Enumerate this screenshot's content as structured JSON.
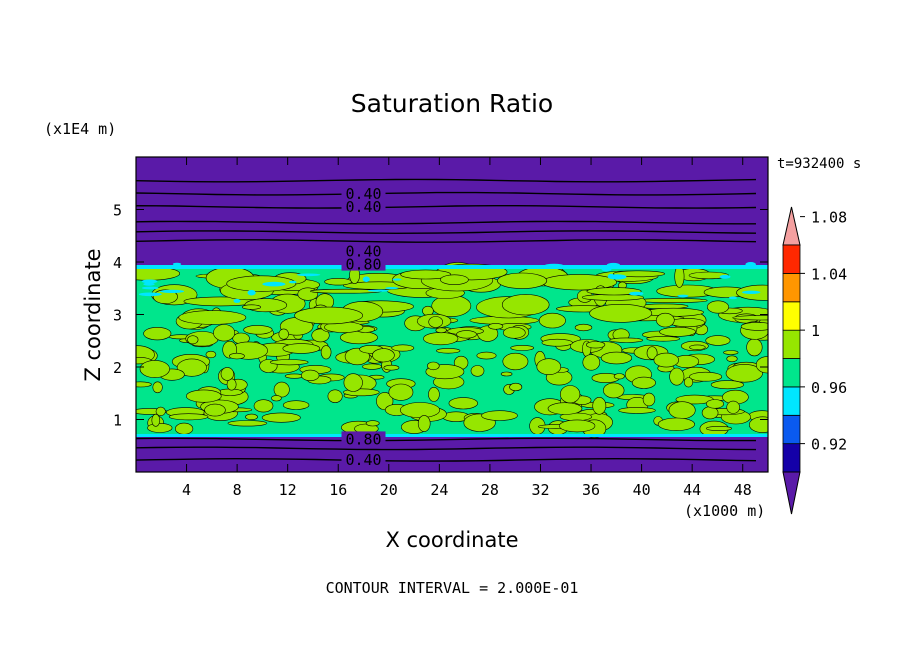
{
  "chart_data": {
    "type": "heatmap",
    "title": "Saturation Ratio",
    "xlabel": "X coordinate",
    "ylabel": "Z coordinate",
    "x_unit": "(x1000 m)",
    "y_unit": "(x1E4 m)",
    "time_label": "t=932400 s",
    "footer": "CONTOUR INTERVAL = 2.000E-01",
    "xlim": [
      0,
      50
    ],
    "ylim": [
      0,
      6
    ],
    "x_ticks": [
      4,
      8,
      12,
      16,
      20,
      24,
      28,
      32,
      36,
      40,
      44,
      48
    ],
    "y_ticks": [
      1,
      2,
      3,
      4,
      5
    ],
    "colorbar": {
      "levels": [
        0.92,
        0.96,
        1,
        1.04,
        1.08
      ],
      "labels": [
        "0.92",
        "0.96",
        "1",
        "1.04",
        "1.08"
      ],
      "colors": [
        "#5a1aa8",
        "#1400a8",
        "#0a5af0",
        "#00e6ff",
        "#00e68c",
        "#96e600",
        "#ffff00",
        "#ff9600",
        "#ff2800",
        "#f4a0a0"
      ]
    },
    "bands": [
      {
        "z_from": 0.0,
        "z_to": 0.72,
        "class": "subsaturated",
        "color": "#5a1aa8"
      },
      {
        "z_from": 0.72,
        "z_to": 3.85,
        "class": "near-saturated mixed layer",
        "colors": [
          "#00e68c",
          "#96e600"
        ]
      },
      {
        "z_from": 3.85,
        "z_to": 6.0,
        "class": "subsaturated",
        "color": "#5a1aa8"
      }
    ],
    "contour_labels": [
      {
        "text": "0.40",
        "x": 18,
        "z": 5.3
      },
      {
        "text": "0.40",
        "x": 18,
        "z": 5.05
      },
      {
        "text": "0.40",
        "x": 18,
        "z": 4.2
      },
      {
        "text": "0.80",
        "x": 18,
        "z": 3.95
      },
      {
        "text": "0.80",
        "x": 18,
        "z": 0.62
      },
      {
        "text": "0.40",
        "x": 18,
        "z": 0.23
      }
    ]
  }
}
